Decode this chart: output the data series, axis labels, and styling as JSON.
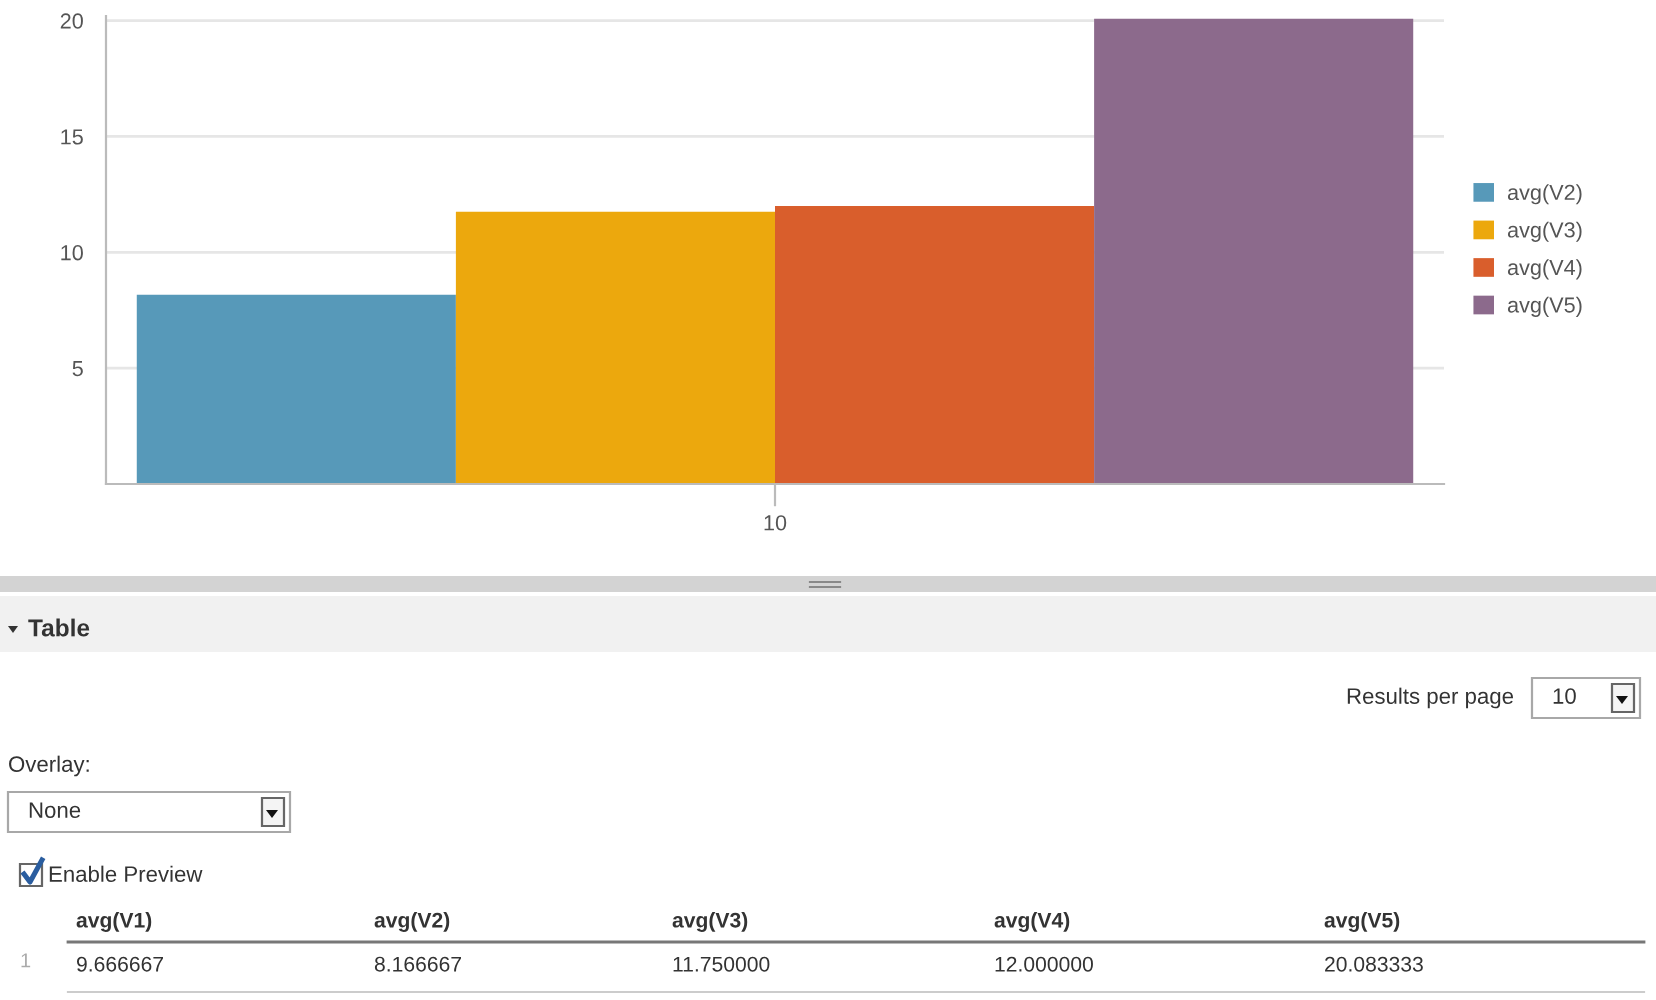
{
  "chart_data": {
    "type": "bar",
    "categories": [
      "10"
    ],
    "series": [
      {
        "name": "avg(V2)",
        "color": "#5799b9",
        "values": [
          8.166667
        ]
      },
      {
        "name": "avg(V3)",
        "color": "#eca80d",
        "values": [
          11.75
        ]
      },
      {
        "name": "avg(V4)",
        "color": "#d95e2c",
        "values": [
          12.0
        ]
      },
      {
        "name": "avg(V5)",
        "color": "#8c6a8c",
        "values": [
          20.083333
        ]
      }
    ],
    "ylim": [
      0,
      20.2
    ],
    "yticks": [
      5,
      10,
      15,
      20
    ],
    "grid": "y",
    "legend": "right",
    "annotations": [
      "Table",
      "Results per page",
      "10",
      "Overlay:",
      "None",
      "Enable Preview",
      "avg(V1)",
      "9.666667",
      "8.166667",
      "11.750000",
      "12.000000",
      "20.083333",
      "1"
    ]
  }
}
